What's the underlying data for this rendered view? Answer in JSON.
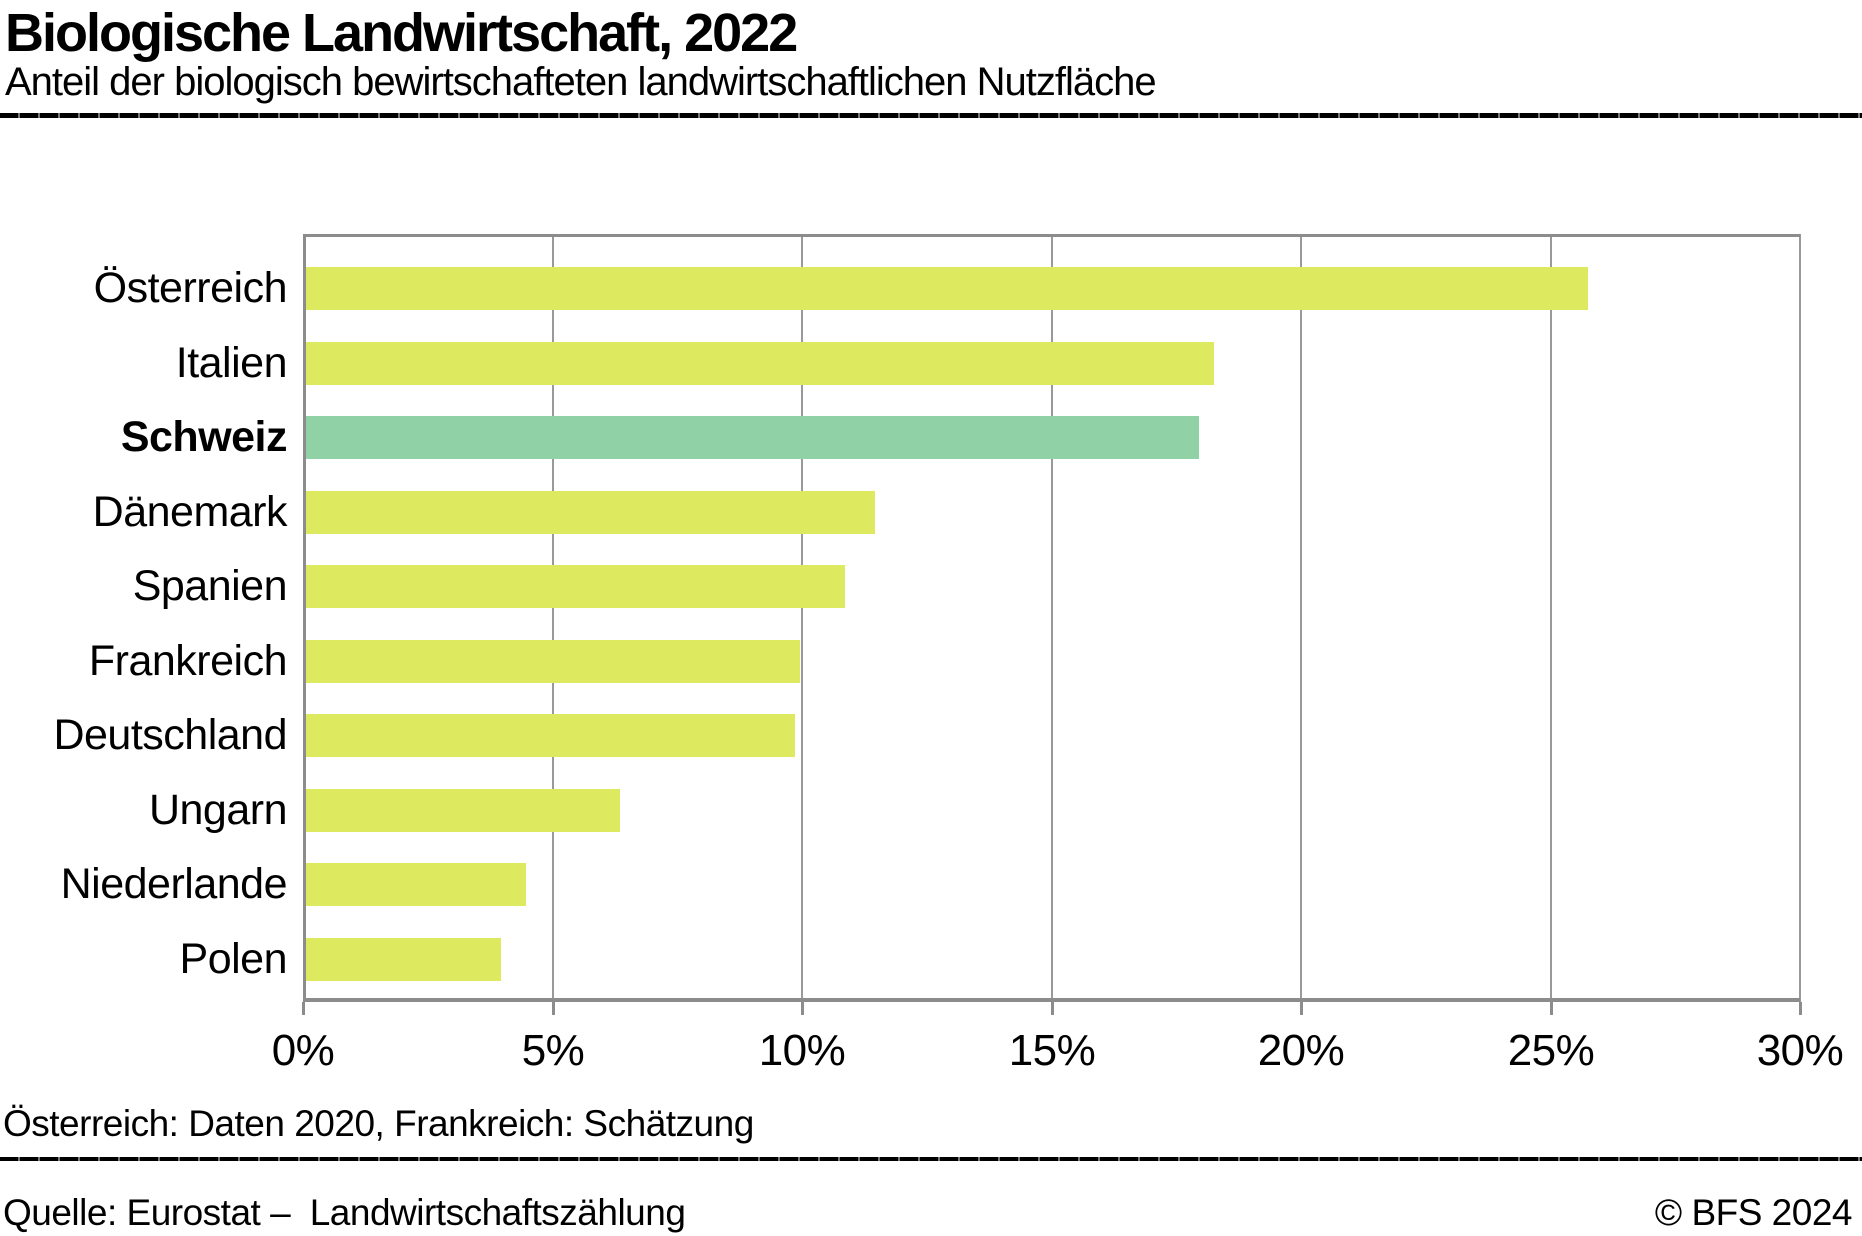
{
  "header": {
    "title": "Biologische Landwirtschaft, 2022",
    "subtitle": "Anteil der biologisch bewirtschafteten landwirtschaftlichen Nutzfläche"
  },
  "chart_data": {
    "type": "bar",
    "orientation": "horizontal",
    "categories": [
      "Österreich",
      "Italien",
      "Schweiz",
      "Dänemark",
      "Spanien",
      "Frankreich",
      "Deutschland",
      "Ungarn",
      "Niederlande",
      "Polen"
    ],
    "values": [
      25.7,
      18.2,
      17.9,
      11.4,
      10.8,
      9.9,
      9.8,
      6.3,
      4.4,
      3.9
    ],
    "unit": "%",
    "title": "Biologische Landwirtschaft, 2022",
    "xlabel": "",
    "ylabel": "",
    "xlim": [
      0,
      30
    ],
    "xtick_values": [
      0,
      5,
      10,
      15,
      20,
      25,
      30
    ],
    "xtick_labels": [
      "0%",
      "5%",
      "10%",
      "15%",
      "20%",
      "25%",
      "30%"
    ],
    "grid": "vertical",
    "legend": "none",
    "highlight": {
      "category": "Schweiz",
      "index": 2
    }
  },
  "colors": {
    "bar_default": "#dde95f",
    "bar_highlight": "#90d1a6",
    "axis": "#8c8c8c",
    "grid": "#999999",
    "text": "#000000"
  },
  "footnote": "Österreich: Daten 2020, Frankreich: Schätzung",
  "footer": {
    "source": "Quelle: Eurostat –  Landwirtschaftszählung",
    "copyright": "© BFS 2024"
  }
}
